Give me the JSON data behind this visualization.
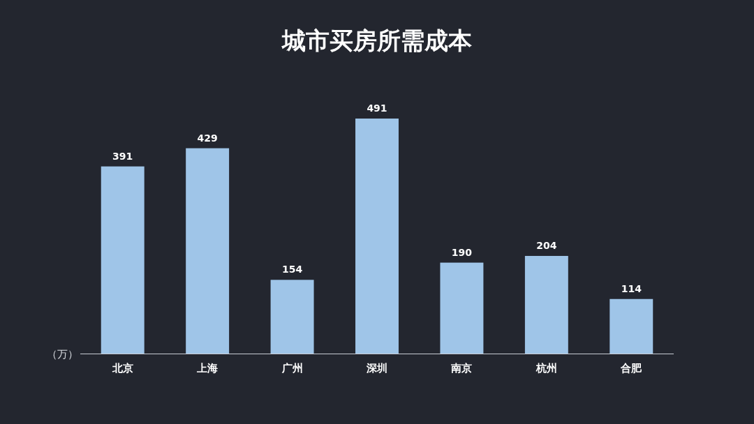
{
  "chart_data": {
    "type": "bar",
    "title": "城市买房所需成本",
    "ylabel": "（万）",
    "categories": [
      "北京",
      "上海",
      "广州",
      "深圳",
      "南京",
      "杭州",
      "合肥"
    ],
    "values": [
      391,
      429,
      154,
      491,
      190,
      204,
      114
    ],
    "color": "#9fc5e8",
    "data_labels": true
  }
}
